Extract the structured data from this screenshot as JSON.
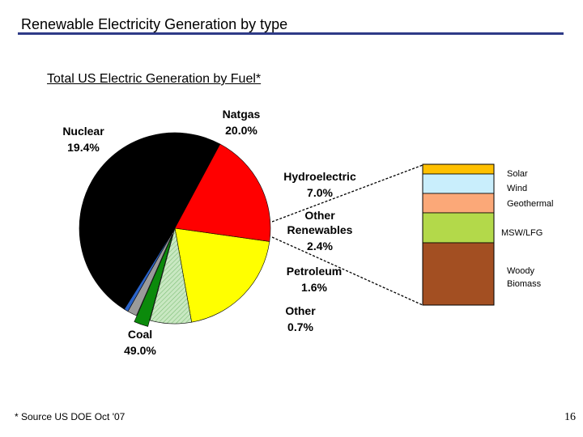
{
  "slide": {
    "title": "Renewable Electricity Generation by type",
    "source_note": "* Source US DOE Oct '07",
    "page_number": "16"
  },
  "colors": {
    "title_rule": "#2e3a87"
  },
  "chart_data": [
    {
      "type": "pie",
      "title": "Total US Electric Generation by Fuel*",
      "slices": [
        {
          "name": "Natgas",
          "value": 20.0,
          "label": "20.0%",
          "color": "#ffff00"
        },
        {
          "name": "Hydroelectric",
          "value": 7.0,
          "label": "7.0%",
          "color": "#b5dcae"
        },
        {
          "name": "Other Renewables",
          "value": 2.4,
          "label": "2.4%",
          "color": "#0b8a0b"
        },
        {
          "name": "Petroleum",
          "value": 1.6,
          "label": "1.6%",
          "color": "#9a9a9a"
        },
        {
          "name": "Other",
          "value": 0.7,
          "label": "0.7%",
          "color": "#2a63c9"
        },
        {
          "name": "Coal",
          "value": 49.0,
          "label": "49.0%",
          "color": "#000000"
        },
        {
          "name": "Nuclear",
          "value": 19.4,
          "label": "19.4%",
          "color": "#ff0000"
        }
      ],
      "exploded_slice": "Other Renewables"
    },
    {
      "type": "bar",
      "stacked": true,
      "breakdown_of": "Other Renewables",
      "segments": [
        {
          "name": "Solar",
          "color": "#ffc000"
        },
        {
          "name": "Wind",
          "color": "#c9eefc"
        },
        {
          "name": "Geothermal",
          "color": "#fba878"
        },
        {
          "name": "MSW/LFG",
          "color": "#b3d94a"
        },
        {
          "name": "Woody Biomass",
          "color": "#a34f22"
        }
      ]
    }
  ]
}
